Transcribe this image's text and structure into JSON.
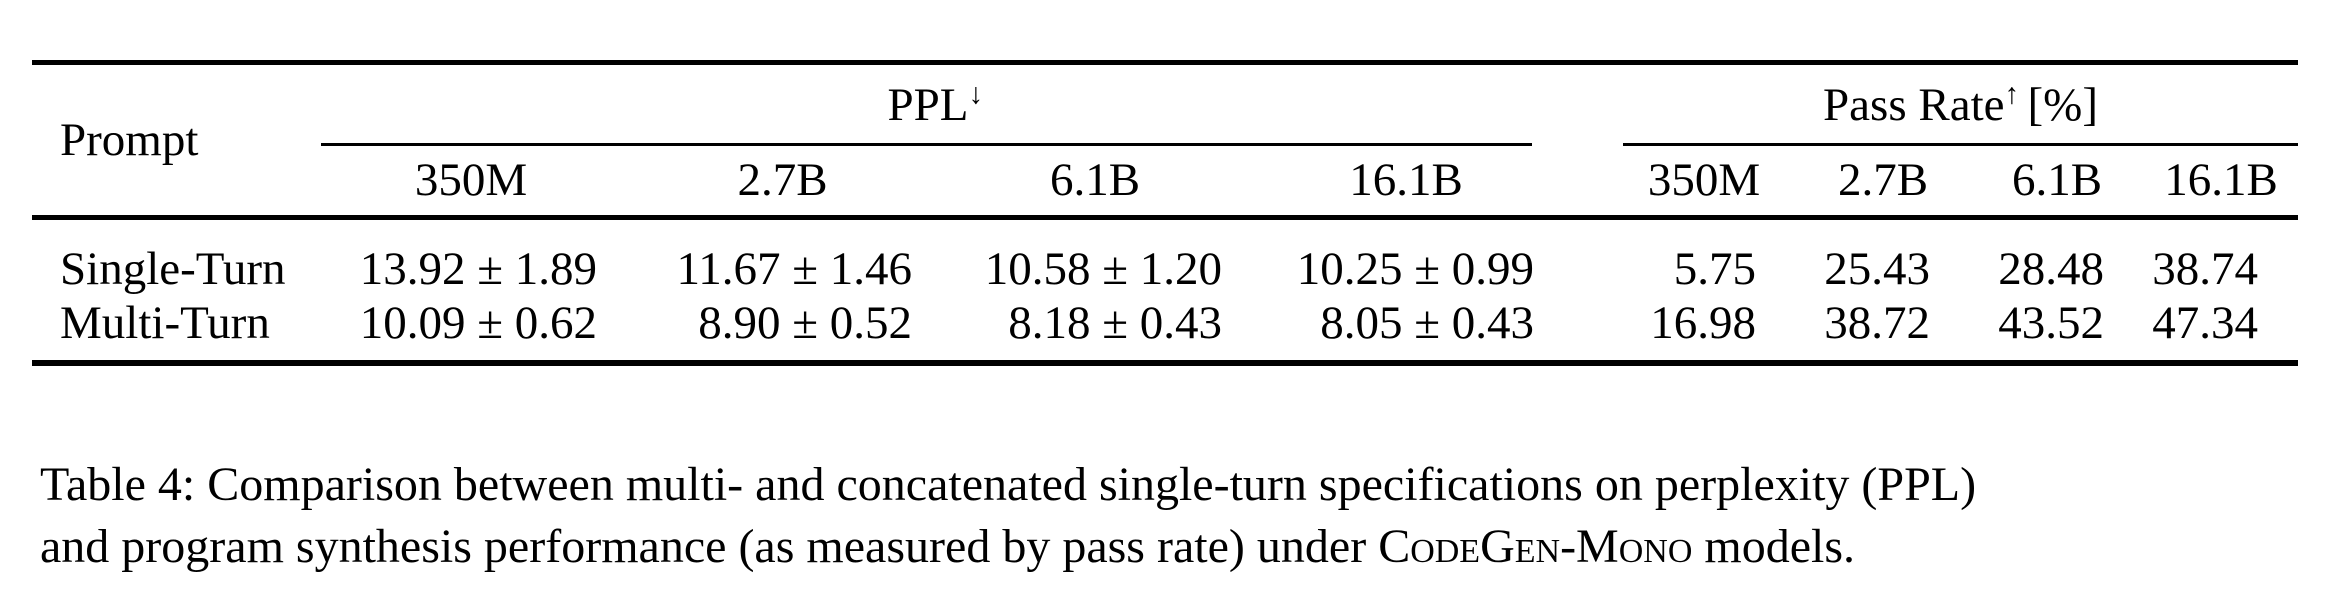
{
  "table": {
    "prompt_header": "Prompt",
    "groups": [
      {
        "label": "PPL",
        "arrow": "↓",
        "suffix": "",
        "subcols": [
          "350M",
          "2.7B",
          "6.1B",
          "16.1B"
        ]
      },
      {
        "label": "Pass Rate",
        "arrow": "↑",
        "suffix": "[%]",
        "subcols": [
          "350M",
          "2.7B",
          "6.1B",
          "16.1B"
        ]
      }
    ],
    "rows": [
      {
        "prompt": "Single-Turn",
        "ppl": [
          "13.92 ± 1.89",
          "11.67 ± 1.46",
          "10.58 ± 1.20",
          "10.25 ± 0.99"
        ],
        "pass_rate": [
          "5.75",
          "25.43",
          "28.48",
          "38.74"
        ]
      },
      {
        "prompt": "Multi-Turn",
        "ppl": [
          "10.09 ± 0.62",
          "8.90 ± 0.52",
          "8.18 ± 0.43",
          "8.05 ± 0.43"
        ],
        "pass_rate": [
          "16.98",
          "38.72",
          "43.52",
          "47.34"
        ]
      }
    ]
  },
  "caption": {
    "line1": "Table 4: Comparison between multi- and concatenated single-turn specifications on perplexity (PPL)",
    "line2_before": "and program synthesis performance (as measured by pass rate) under ",
    "line2_smallcaps": "CodeGen-Mono",
    "line2_after": " models."
  }
}
